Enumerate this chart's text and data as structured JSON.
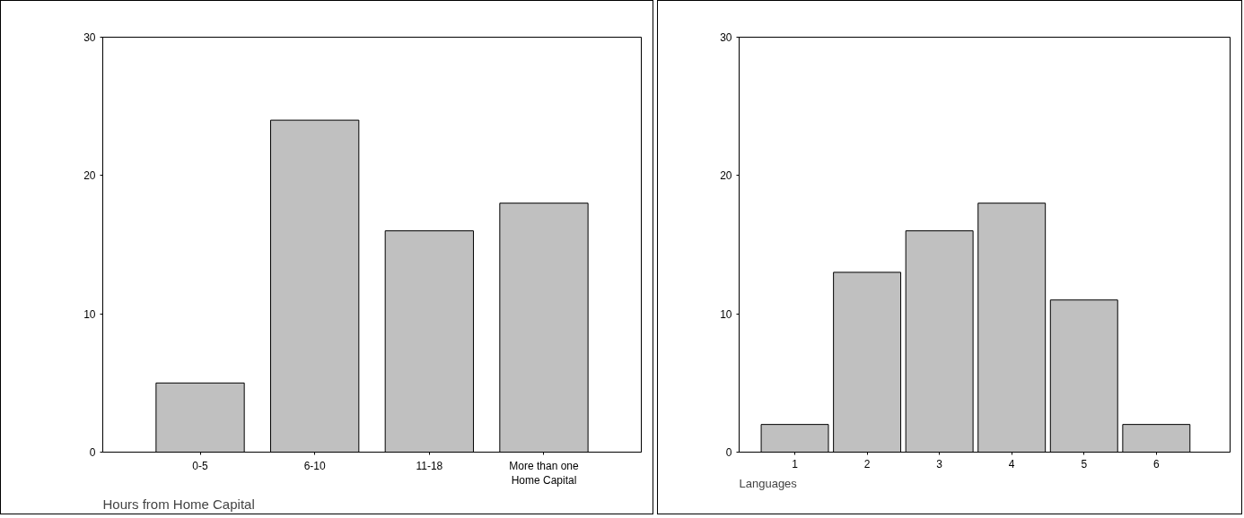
{
  "chart_data": [
    {
      "type": "bar",
      "xlabel": "Hours from Home Capital",
      "categories": [
        "0-5",
        "6-10",
        "11-18",
        "More than one Home Capital"
      ],
      "values": [
        5,
        24,
        16,
        18
      ],
      "color": "#c0c0c0",
      "ylim": [
        0,
        30
      ],
      "yticks": [
        0,
        10,
        20,
        30
      ]
    },
    {
      "type": "bar",
      "xlabel": "Languages",
      "categories": [
        "1",
        "2",
        "3",
        "4",
        "5",
        "6"
      ],
      "values": [
        2,
        13,
        16,
        18,
        11,
        2
      ],
      "color": "#c0c0c0",
      "ylim": [
        0,
        30
      ],
      "yticks": [
        0,
        10,
        20,
        30
      ]
    }
  ]
}
